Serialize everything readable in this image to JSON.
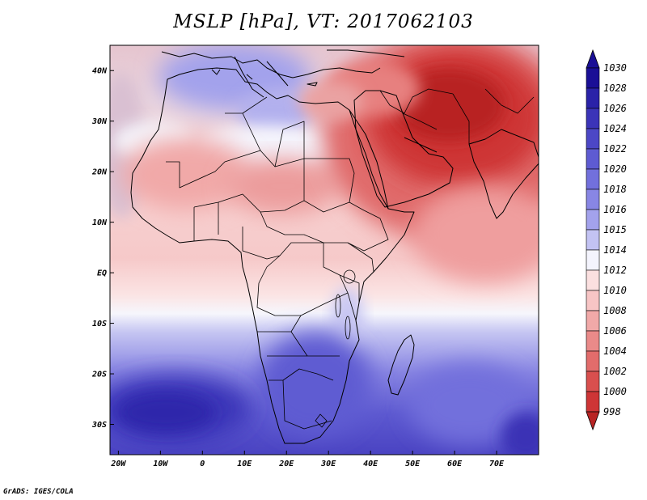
{
  "title": "MSLP [hPa], VT: 2017062103",
  "credit": "GrADS: IGES/COLA",
  "map": {
    "lon_range": [
      -22,
      80
    ],
    "lat_range": [
      -36,
      45
    ],
    "x_ticks": [
      {
        "lon": -20,
        "label": "20W"
      },
      {
        "lon": -10,
        "label": "10W"
      },
      {
        "lon": 0,
        "label": "0"
      },
      {
        "lon": 10,
        "label": "10E"
      },
      {
        "lon": 20,
        "label": "20E"
      },
      {
        "lon": 30,
        "label": "30E"
      },
      {
        "lon": 40,
        "label": "40E"
      },
      {
        "lon": 50,
        "label": "50E"
      },
      {
        "lon": 60,
        "label": "60E"
      },
      {
        "lon": 70,
        "label": "70E"
      }
    ],
    "y_ticks": [
      {
        "lat": 40,
        "label": "40N"
      },
      {
        "lat": 30,
        "label": "30N"
      },
      {
        "lat": 20,
        "label": "20N"
      },
      {
        "lat": 10,
        "label": "10N"
      },
      {
        "lat": 0,
        "label": "EQ"
      },
      {
        "lat": -10,
        "label": "10S"
      },
      {
        "lat": -20,
        "label": "20S"
      },
      {
        "lat": -30,
        "label": "30S"
      }
    ]
  },
  "colorbar": {
    "levels": [
      "1030",
      "1028",
      "1026",
      "1024",
      "1022",
      "1020",
      "1018",
      "1016",
      "1015",
      "1014",
      "1012",
      "1010",
      "1008",
      "1006",
      "1004",
      "1002",
      "1000",
      "998"
    ],
    "colors": [
      "#1a0f96",
      "#2a22a8",
      "#3b34b8",
      "#4c47c6",
      "#5e5bd2",
      "#7270dc",
      "#8886e4",
      "#a3a2ec",
      "#c3c3f3",
      "#f4f4fd",
      "#fbe0e0",
      "#f7c5c5",
      "#f1a9a8",
      "#ea8a89",
      "#e26c6b",
      "#d94f4e",
      "#ce3536",
      "#b82424"
    ]
  },
  "fields": [
    {
      "name": "south-atlantic-high",
      "value": 1026,
      "color": "#3b34b8"
    },
    {
      "name": "southern-africa-high",
      "value": 1022,
      "color": "#5e5bd2"
    },
    {
      "name": "indian-ocean-high",
      "value": 1020,
      "color": "#7270dc"
    },
    {
      "name": "mediterranean-high",
      "value": 1016,
      "color": "#a3a2ec"
    },
    {
      "name": "sahel-ridge",
      "value": 1014,
      "color": "#f4f4fd"
    },
    {
      "name": "saharan-low",
      "value": 1008,
      "color": "#f1a9a8"
    },
    {
      "name": "arabian-heat-low",
      "value": 1000,
      "color": "#ce3536"
    }
  ]
}
